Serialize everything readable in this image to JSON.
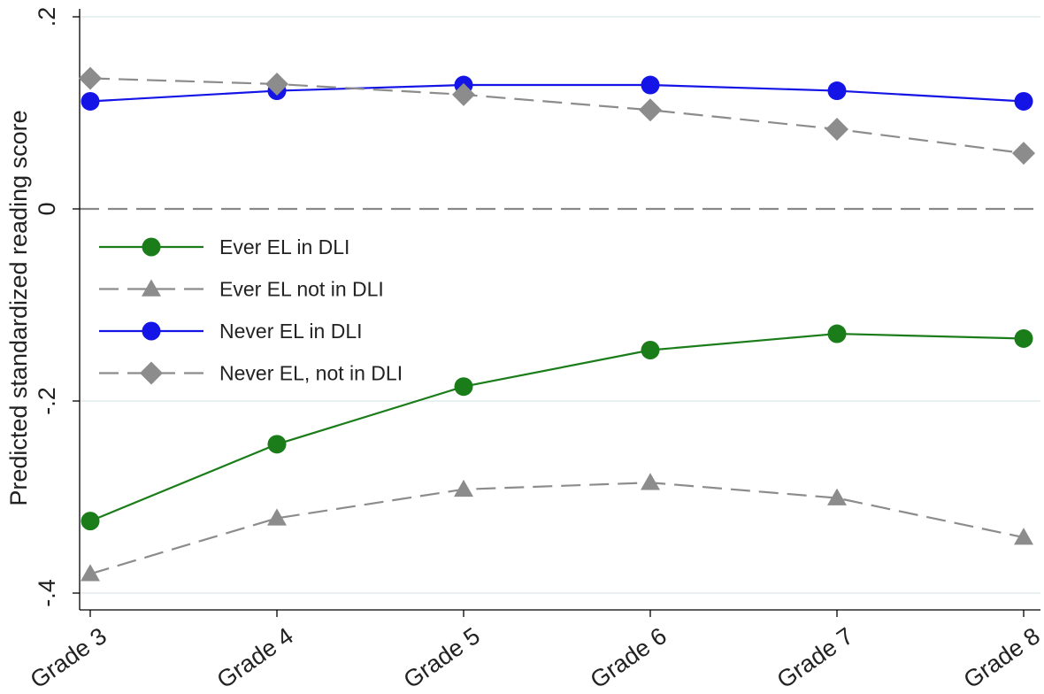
{
  "chart_data": {
    "type": "line",
    "title": "",
    "xlabel": "",
    "ylabel": "Predicted standardized reading score",
    "categories": [
      "Grade 3",
      "Grade 4",
      "Grade 5",
      "Grade 6",
      "Grade 7",
      "Grade 8"
    ],
    "ylim": [
      -0.41,
      0.2
    ],
    "yticks": [
      {
        "value": 0.2,
        "label": ".2"
      },
      {
        "value": 0,
        "label": "0"
      },
      {
        "value": -0.2,
        "label": "-.2"
      },
      {
        "value": -0.4,
        "label": "-.4"
      }
    ],
    "grid": true,
    "reference_line": {
      "value": 0,
      "style": "dashed",
      "color": "#888888"
    },
    "legend": {
      "placement": "center-left"
    },
    "series": [
      {
        "name": "Ever EL in DLI",
        "values": [
          -0.325,
          -0.245,
          -0.185,
          -0.147,
          -0.13,
          -0.135
        ],
        "color": "#1a7d1a",
        "marker": "circle",
        "dash": "solid"
      },
      {
        "name": "Ever EL not in DLI",
        "values": [
          -0.38,
          -0.322,
          -0.292,
          -0.285,
          -0.301,
          -0.342
        ],
        "color": "#8c8c8c",
        "marker": "triangle",
        "dash": "dashed"
      },
      {
        "name": "Never EL in DLI",
        "values": [
          0.112,
          0.123,
          0.129,
          0.129,
          0.123,
          0.112
        ],
        "color": "#1414e6",
        "marker": "circle",
        "dash": "solid"
      },
      {
        "name": "Never EL, not in DLI",
        "values": [
          0.136,
          0.13,
          0.119,
          0.103,
          0.083,
          0.058
        ],
        "color": "#8c8c8c",
        "marker": "diamond",
        "dash": "dashed"
      }
    ]
  }
}
